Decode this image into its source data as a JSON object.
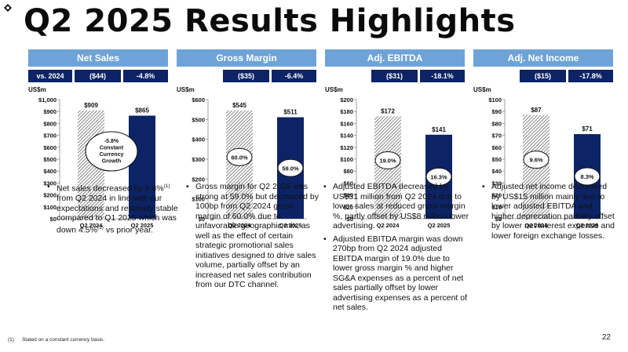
{
  "title": "Q2 2025 Results Highlights",
  "colors": {
    "header": "#6ea3d8",
    "compare_bg": "#0c2466",
    "bar_2025": "#0c2466",
    "bar_2024_hatch": "#555555"
  },
  "panels": [
    {
      "header": "Net Sales",
      "compare": [
        "vs. 2024",
        "($44)",
        "-4.8%"
      ],
      "bullets": [
        "Net sales decreased by 5.8%(1) from Q2 2024 in line with our expectations and relatively stable compared to Q1 2025 which was down 4.5%(1) vs prior year."
      ]
    },
    {
      "header": "Gross Margin",
      "compare": [
        "($35)",
        "-6.4%"
      ],
      "bullets": [
        "Gross margin for Q2 2025 was strong at 59.0% but decreased by 100bp from Q2 2024 gross margin of 60.0% due to unfavorable geographic mix, as well as the effect of certain strategic promotional sales initiatives designed to drive sales volume, partially offset by an increased net sales contribution from our DTC channel."
      ]
    },
    {
      "header": "Adj. EBITDA",
      "compare": [
        "($31)",
        "-18.1%"
      ],
      "bullets": [
        "Adjusted EBITDA decreased by US$31 million from Q2 2024 due to lower sales at reduced gross margin %, partly offset by US$8 million lower advertising.",
        "Adjusted EBITDA margin was down 270bp from Q2 2024 adjusted EBITDA margin of 19.0% due to lower gross margin % and higher SG&A expenses as a percent of net sales partially offset by lower advertising expenses as a percent of net sales."
      ]
    },
    {
      "header": "Adj. Net Income",
      "compare": [
        "($15)",
        "-17.8%"
      ],
      "bullets": [
        "Adjusted net income decreased by US$15 million mainly due to lower adjusted EBITDA and higher depreciation partially offset by lower net interest expense and lower foreign exchange losses."
      ]
    }
  ],
  "chart_data": [
    {
      "type": "bar",
      "ylabel": "US$m",
      "categories": [
        "Q2 2024",
        "Q2 2025"
      ],
      "values": [
        909,
        865
      ],
      "value_labels": [
        "$909",
        "$865"
      ],
      "ylim": [
        0,
        1000
      ],
      "yticks": [
        "$0",
        "$100",
        "$200",
        "$300",
        "$400",
        "$500",
        "$600",
        "$700",
        "$800",
        "$900",
        "$1,000"
      ],
      "annotation": [
        "-5.8%",
        "Constant",
        "Currency",
        "Growth"
      ]
    },
    {
      "type": "bar",
      "ylabel": "US$m",
      "categories": [
        "Q2 2024",
        "Q2 2025"
      ],
      "values": [
        545,
        511
      ],
      "value_labels": [
        "$545",
        "$511"
      ],
      "ylim": [
        0,
        600
      ],
      "yticks": [
        "$0",
        "$100",
        "$200",
        "$300",
        "$400",
        "$500",
        "$600"
      ],
      "margins": [
        "60.0%",
        "59.0%"
      ]
    },
    {
      "type": "bar",
      "ylabel": "US$m",
      "categories": [
        "Q2 2024",
        "Q2 2025"
      ],
      "values": [
        172,
        141
      ],
      "value_labels": [
        "$172",
        "$141"
      ],
      "ylim": [
        0,
        200
      ],
      "yticks": [
        "$0",
        "$20",
        "$40",
        "$60",
        "$80",
        "$100",
        "$120",
        "$140",
        "$160",
        "$180",
        "$200"
      ],
      "margins": [
        "19.0%",
        "16.3%"
      ]
    },
    {
      "type": "bar",
      "ylabel": "US$m",
      "categories": [
        "Q2 2024",
        "Q2 2025"
      ],
      "values": [
        87,
        71
      ],
      "value_labels": [
        "$87",
        "$71"
      ],
      "ylim": [
        0,
        100
      ],
      "yticks": [
        "$0",
        "$10",
        "$20",
        "$30",
        "$40",
        "$50",
        "$60",
        "$70",
        "$80",
        "$90",
        "$100"
      ],
      "margins": [
        "9.6%",
        "8.3%"
      ]
    }
  ],
  "footnote": {
    "num": "(1)",
    "text": "Stated on a constant currency basis."
  },
  "page_number": "22"
}
